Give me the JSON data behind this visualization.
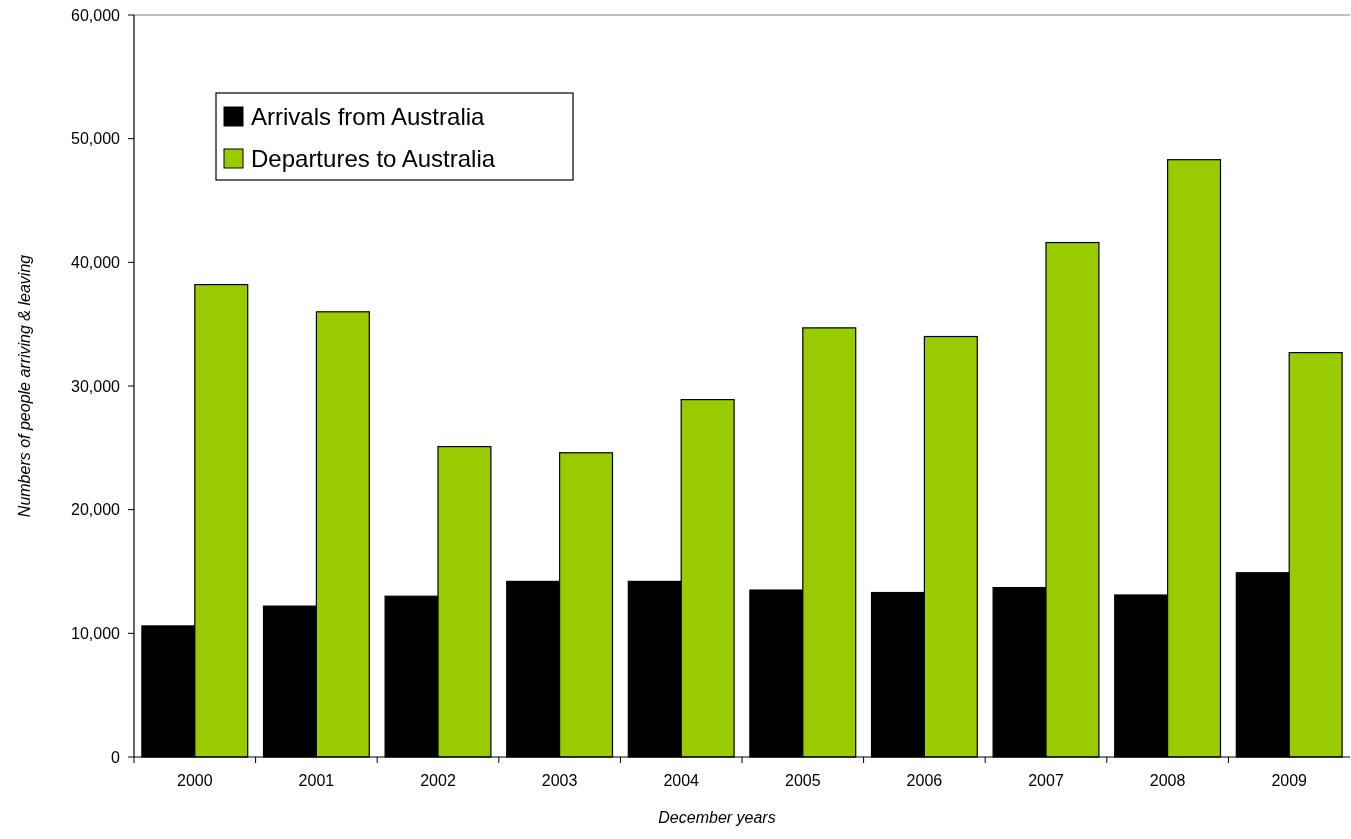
{
  "chart_data": {
    "type": "bar",
    "xlabel": "December years",
    "ylabel": "Numbers of people arriving & leaving",
    "categories": [
      "2000",
      "2001",
      "2002",
      "2003",
      "2004",
      "2005",
      "2006",
      "2007",
      "2008",
      "2009"
    ],
    "series": [
      {
        "name": "Arrivals from Australia",
        "color": "#000000",
        "values": [
          10600,
          12200,
          13000,
          14200,
          14200,
          13500,
          13300,
          13700,
          13100,
          14900
        ]
      },
      {
        "name": "Departures to Australia",
        "color": "#99cc00",
        "values": [
          38200,
          36000,
          25100,
          24600,
          28900,
          34700,
          34000,
          41600,
          48300,
          32700
        ]
      }
    ],
    "ylim": [
      0,
      60000
    ],
    "yticks": [
      0,
      {
        "value": 10000,
        "label": "10,000"
      },
      {
        "value": 20000,
        "label": "20,000"
      },
      {
        "value": 30000,
        "label": "30,000"
      },
      {
        "value": 40000,
        "label": "40,000"
      },
      {
        "value": 50000,
        "label": "50,000"
      },
      {
        "value": 60000,
        "label": "60,000"
      }
    ],
    "legend": "top left",
    "grid": false
  }
}
